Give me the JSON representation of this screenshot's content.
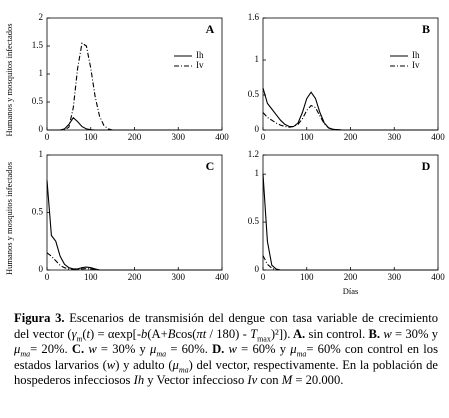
{
  "chart_data": [
    {
      "type": "line",
      "title": "A",
      "ylabel": "Humanos y mosquitos infectados",
      "x": [
        0,
        10,
        20,
        30,
        40,
        50,
        60,
        70,
        80,
        90,
        100,
        110,
        120,
        130,
        140,
        150,
        160,
        180,
        200,
        250,
        300,
        400
      ],
      "xlim": [
        0,
        400
      ],
      "xticks": [
        0,
        100,
        200,
        300,
        400
      ],
      "ylim": [
        0,
        2
      ],
      "yticks": [
        0,
        0.5,
        1,
        1.5,
        2
      ],
      "legend": "right",
      "series": [
        {
          "name": "Ih",
          "color": "#000000",
          "dash": "solid",
          "values": [
            0,
            0,
            0,
            0,
            0.02,
            0.1,
            0.22,
            0.15,
            0.06,
            0.02,
            0.005,
            0,
            0,
            0,
            0,
            0,
            0,
            0,
            0,
            0,
            0,
            0
          ]
        },
        {
          "name": "Iv",
          "color": "#000000",
          "dash": "dashdot",
          "values": [
            0,
            0,
            0,
            0,
            0,
            0.05,
            0.4,
            1.1,
            1.55,
            1.5,
            1.1,
            0.6,
            0.25,
            0.08,
            0.02,
            0,
            0,
            0,
            0,
            0,
            0,
            0
          ]
        }
      ]
    },
    {
      "type": "line",
      "title": "B",
      "x": [
        0,
        10,
        20,
        30,
        40,
        50,
        60,
        70,
        80,
        90,
        100,
        110,
        120,
        130,
        140,
        150,
        160,
        180,
        200,
        250,
        300,
        400
      ],
      "xlim": [
        0,
        400
      ],
      "xticks": [
        0,
        100,
        200,
        300,
        400
      ],
      "ylim": [
        0,
        1.6
      ],
      "yticks": [
        0,
        0.5,
        1,
        1.6
      ],
      "legend": "right",
      "series": [
        {
          "name": "Ih",
          "color": "#000000",
          "dash": "solid",
          "values": [
            0.6,
            0.38,
            0.3,
            0.22,
            0.14,
            0.08,
            0.05,
            0.05,
            0.1,
            0.25,
            0.45,
            0.54,
            0.45,
            0.25,
            0.1,
            0.03,
            0.01,
            0,
            0,
            0,
            0,
            0
          ]
        },
        {
          "name": "Iv",
          "color": "#000000",
          "dash": "dashdot",
          "values": [
            0.25,
            0.18,
            0.14,
            0.1,
            0.07,
            0.05,
            0.04,
            0.05,
            0.08,
            0.16,
            0.28,
            0.35,
            0.32,
            0.2,
            0.09,
            0.03,
            0.01,
            0,
            0,
            0,
            0,
            0
          ]
        }
      ]
    },
    {
      "type": "line",
      "title": "C",
      "ylabel": "Humanos y mosquitos infectados",
      "x": [
        0,
        10,
        20,
        30,
        40,
        50,
        60,
        70,
        80,
        90,
        100,
        110,
        120,
        130,
        140,
        150,
        160,
        180,
        200,
        250,
        300,
        400
      ],
      "xlim": [
        0,
        400
      ],
      "xticks": [
        0,
        100,
        200,
        300,
        400
      ],
      "ylim": [
        0,
        1
      ],
      "yticks": [
        0,
        0.5,
        1
      ],
      "series": [
        {
          "color": "#000000",
          "dash": "solid",
          "values": [
            0.78,
            0.3,
            0.25,
            0.12,
            0.05,
            0.02,
            0.01,
            0.01,
            0.02,
            0.025,
            0.02,
            0.01,
            0,
            0,
            0,
            0,
            0,
            0,
            0,
            0,
            0,
            0
          ]
        },
        {
          "color": "#000000",
          "dash": "dashdot",
          "values": [
            0.15,
            0.12,
            0.08,
            0.04,
            0.02,
            0.01,
            0.005,
            0.005,
            0.01,
            0.012,
            0.01,
            0.005,
            0,
            0,
            0,
            0,
            0,
            0,
            0,
            0,
            0,
            0
          ]
        }
      ]
    },
    {
      "type": "line",
      "title": "D",
      "xlabel": "Días",
      "x": [
        0,
        10,
        20,
        30,
        40,
        50,
        60,
        70,
        80,
        90,
        100,
        110,
        120,
        130,
        140,
        150,
        160,
        180,
        200,
        250,
        300,
        400
      ],
      "xlim": [
        0,
        400
      ],
      "xticks": [
        0,
        100,
        200,
        300,
        400
      ],
      "ylim": [
        0,
        1.2
      ],
      "yticks": [
        0,
        0.5,
        1,
        1.2
      ],
      "series": [
        {
          "color": "#000000",
          "dash": "solid",
          "values": [
            1.0,
            0.3,
            0.05,
            0.01,
            0,
            0,
            0,
            0,
            0,
            0,
            0,
            0,
            0,
            0,
            0,
            0,
            0,
            0,
            0,
            0,
            0,
            0
          ]
        },
        {
          "color": "#000000",
          "dash": "dashdot",
          "values": [
            0.15,
            0.06,
            0.02,
            0,
            0,
            0,
            0,
            0,
            0,
            0,
            0,
            0,
            0,
            0,
            0,
            0,
            0,
            0,
            0,
            0,
            0,
            0
          ]
        }
      ]
    }
  ],
  "caption": [
    "Figura 3.",
    " Escenarios de transmisión del dengue con tasa variable de crecimiento del vector (",
    "γ",
    "m",
    "(",
    "t",
    ") = αexp[-",
    "b",
    "(A+",
    "B",
    "cos(",
    "πt",
    " / 180) - ",
    "T",
    "max",
    ")²]).",
    " A.",
    " sin control.",
    " B.",
    " ",
    "w",
    " = 30% y ",
    "μ",
    "ma",
    "= 20%.",
    " C.",
    " ",
    "w",
    " = 30% y ",
    "μ",
    "ma",
    " = 60%.",
    " D.",
    " ",
    "w",
    " = 60% y ",
    "μ",
    "ma",
    "= 60% con control en los estados larvarios (",
    "w",
    ") y adulto (",
    "μ",
    "ma",
    ") del vector, respectivamente. En la población de hospederos infecciosos ",
    "Ih",
    " y Vector infeccioso ",
    "Iv",
    " con ",
    "M",
    " = 20.000."
  ]
}
